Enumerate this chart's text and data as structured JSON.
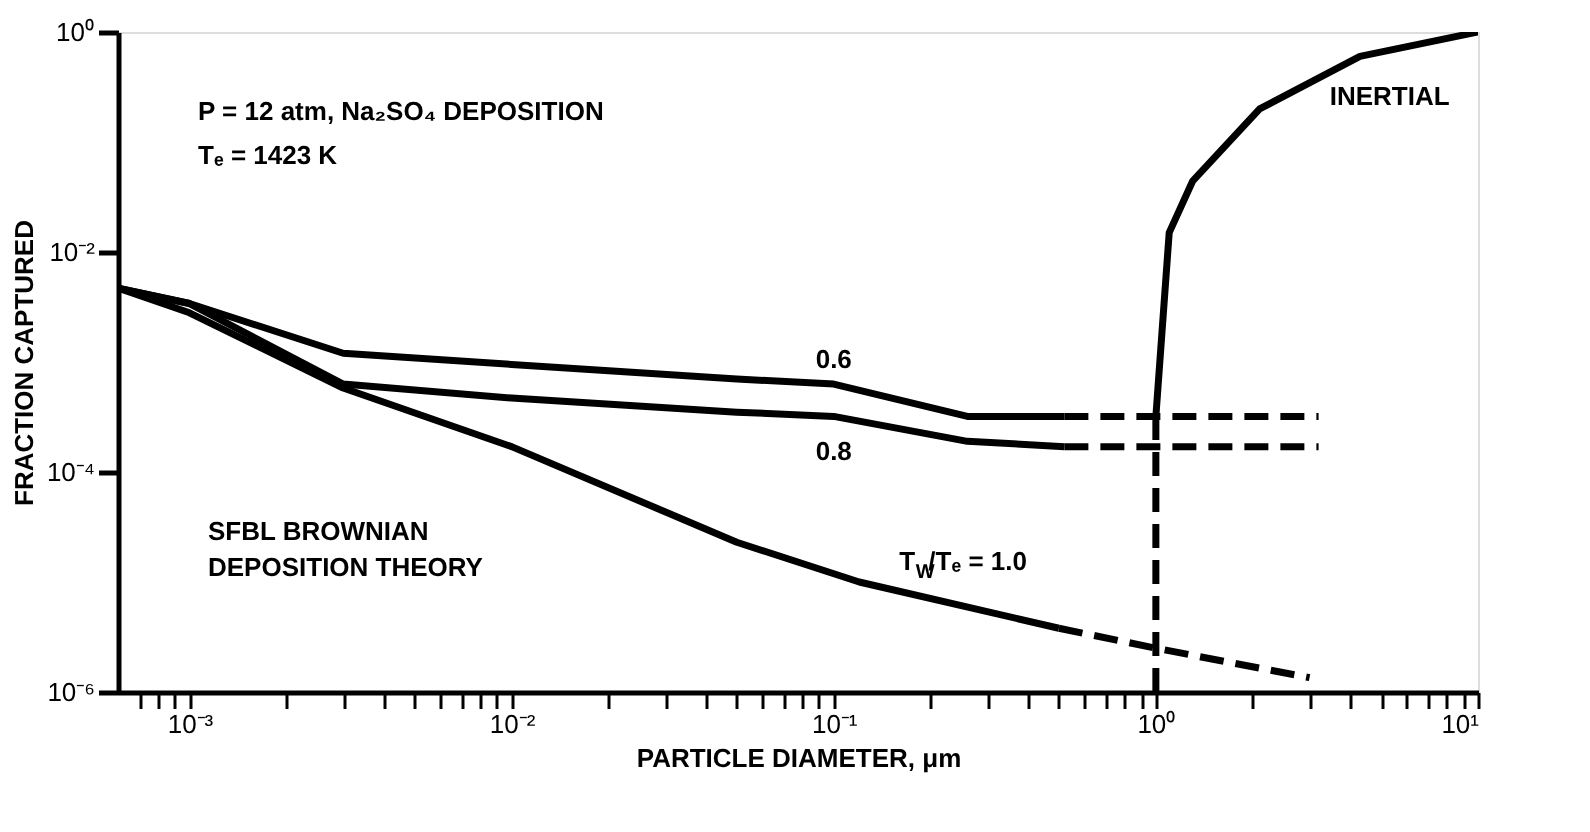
{
  "chart_data": {
    "type": "line",
    "xlabel": "PARTICLE DIAMETER, μm",
    "ylabel": "FRACTION CAPTURED",
    "log": "xy",
    "grid": false,
    "xlim": [
      0.0006,
      10
    ],
    "ylim": [
      1e-06,
      1
    ],
    "xticks": [
      {
        "value": 0.0007,
        "label": null
      },
      {
        "value": 0.0008,
        "label": null
      },
      {
        "value": 0.0009,
        "label": null
      },
      {
        "value": 0.001,
        "label": "10⁻³"
      },
      {
        "value": 0.002,
        "label": null
      },
      {
        "value": 0.003,
        "label": null
      },
      {
        "value": 0.004,
        "label": null
      },
      {
        "value": 0.005,
        "label": null
      },
      {
        "value": 0.006,
        "label": null
      },
      {
        "value": 0.007,
        "label": null
      },
      {
        "value": 0.008,
        "label": null
      },
      {
        "value": 0.009,
        "label": null
      },
      {
        "value": 0.01,
        "label": "10⁻²"
      },
      {
        "value": 0.02,
        "label": null
      },
      {
        "value": 0.03,
        "label": null
      },
      {
        "value": 0.04,
        "label": null
      },
      {
        "value": 0.05,
        "label": null
      },
      {
        "value": 0.06,
        "label": null
      },
      {
        "value": 0.07,
        "label": null
      },
      {
        "value": 0.08,
        "label": null
      },
      {
        "value": 0.09,
        "label": null
      },
      {
        "value": 0.1,
        "label": "10⁻¹"
      },
      {
        "value": 0.2,
        "label": null
      },
      {
        "value": 0.3,
        "label": null
      },
      {
        "value": 0.4,
        "label": null
      },
      {
        "value": 0.5,
        "label": null
      },
      {
        "value": 0.6,
        "label": null
      },
      {
        "value": 0.7,
        "label": null
      },
      {
        "value": 0.8,
        "label": null
      },
      {
        "value": 0.9,
        "label": null
      },
      {
        "value": 1,
        "label": "10⁰"
      },
      {
        "value": 2,
        "label": null
      },
      {
        "value": 3,
        "label": null
      },
      {
        "value": 4,
        "label": null
      },
      {
        "value": 5,
        "label": null
      },
      {
        "value": 6,
        "label": null
      },
      {
        "value": 7,
        "label": null
      },
      {
        "value": 8,
        "label": null
      },
      {
        "value": 9,
        "label": null
      },
      {
        "value": 10,
        "label": "10¹"
      }
    ],
    "yticks": [
      {
        "value": 1e-06,
        "label": "10⁻⁶"
      },
      {
        "value": 0.0001,
        "label": "10⁻⁴"
      },
      {
        "value": 0.01,
        "label": "10⁻²"
      },
      {
        "value": 1,
        "label": "10⁰"
      }
    ],
    "series": [
      {
        "color": "#000000",
        "line_style": "solid",
        "x": [
          0.0006,
          0.001,
          0.003,
          0.01,
          0.05,
          0.1,
          0.26,
          0.52
        ],
        "values": [
          0.0047,
          0.0034,
          0.0012,
          0.00095,
          0.0007,
          0.00063,
          0.00032,
          0.00032
        ]
      },
      {
        "color": "#000000",
        "line_style": "dashed",
        "x": [
          0.52,
          3.2
        ],
        "values": [
          0.00032,
          0.00032
        ]
      },
      {
        "color": "#000000",
        "line_style": "solid",
        "x": [
          0.0006,
          0.001,
          0.003,
          0.01,
          0.05,
          0.1,
          0.26,
          0.52
        ],
        "values": [
          0.0047,
          0.0034,
          0.00063,
          0.00047,
          0.00035,
          0.00032,
          0.00019,
          0.00017
        ]
      },
      {
        "color": "#000000",
        "line_style": "dashed",
        "x": [
          0.52,
          3.2
        ],
        "values": [
          0.00017,
          0.00017
        ]
      },
      {
        "color": "#000000",
        "line_style": "solid",
        "x": [
          0.0006,
          0.001,
          0.003,
          0.01,
          0.05,
          0.12,
          0.5
        ],
        "values": [
          0.0047,
          0.0028,
          0.00058,
          0.00017,
          2.3e-05,
          1e-05,
          3.8e-06
        ]
      },
      {
        "color": "#000000",
        "line_style": "dashed",
        "x": [
          0.5,
          1,
          3
        ],
        "values": [
          3.8e-06,
          2.5e-06,
          1.35e-06
        ]
      },
      {
        "color": "#000000",
        "line_style": "dashed",
        "x": [
          1,
          1
        ],
        "values": [
          1e-06,
          0.00032
        ]
      },
      {
        "color": "#000000",
        "line_style": "solid",
        "x": [
          1,
          1.1,
          1.3,
          2.1,
          4.3,
          10
        ],
        "values": [
          0.00032,
          0.015,
          0.044,
          0.2,
          0.6,
          1
        ]
      }
    ],
    "annotations": [
      "P = 12 atm, Na₂SO₄ DEPOSITION",
      "Tₑ = 1423 K",
      {
        "text": "0.6",
        "x": 0.1,
        "y": 0.00063
      },
      {
        "text": "0.8",
        "x": 0.1,
        "y": 0.00032
      },
      {
        "text": "T$_{W}$/Tₑ = 1.0",
        "x": 0.12,
        "y": 1e-05
      },
      {
        "text": "INERTIAL",
        "x": 2.1,
        "y": 0.2
      },
      "SFBL BROWNIAN DEPOSITION THEORY"
    ]
  }
}
